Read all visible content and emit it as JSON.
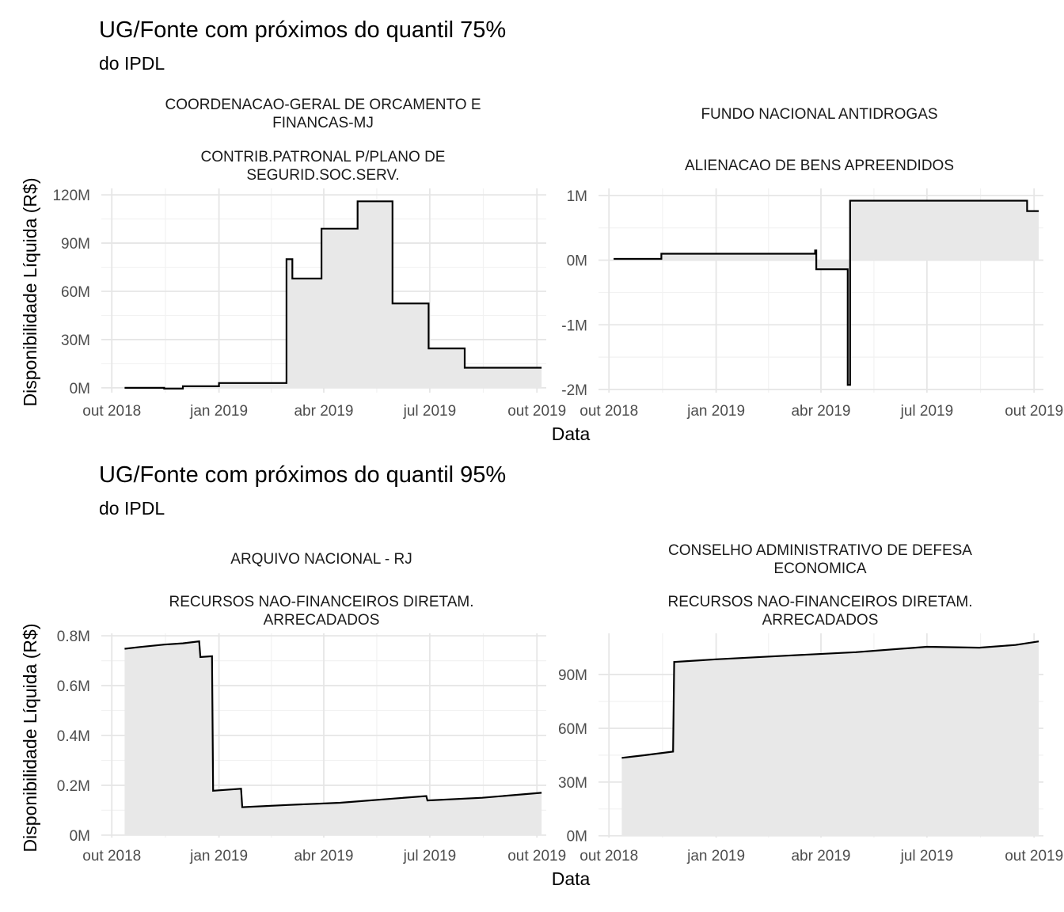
{
  "figures": [
    {
      "title": "UG/Fonte com próximos do quantil 75%",
      "subtitle": "do IPDL",
      "ylabel": "Disponibilidade Líquida (R$)",
      "xlabel": "Data"
    },
    {
      "title": "UG/Fonte com próximos do quantil 95%",
      "subtitle": "do IPDL",
      "ylabel": "Disponibilidade Líquida (R$)",
      "xlabel": "Data"
    }
  ],
  "x_ticks": [
    {
      "date": "2018-10-01",
      "label": "out 2018"
    },
    {
      "date": "2019-01-01",
      "label": "jan 2019"
    },
    {
      "date": "2019-04-01",
      "label": "abr 2019"
    },
    {
      "date": "2019-07-01",
      "label": "jul 2019"
    },
    {
      "date": "2019-10-01",
      "label": "out 2019"
    }
  ],
  "colors": {
    "line": "#000000",
    "fill": "#e8e8e8",
    "grid_major": "#e6e6e6",
    "grid_minor": "#f2f2f2",
    "tick_text": "#4d4d4d"
  },
  "chart_data": [
    {
      "type": "area",
      "figure": 0,
      "panel": "left",
      "strip": [
        "COORDENACAO-GERAL DE ORCAMENTO E",
        "FINANCAS-MJ",
        "CONTRIB.PATRONAL P/PLANO DE",
        "SEGURID.SOC.SERV."
      ],
      "xlim": [
        "2018-09-22",
        "2019-10-09"
      ],
      "ylim": [
        -3000000,
        124000000
      ],
      "y_ticks": [
        {
          "v": 0,
          "label": "0M"
        },
        {
          "v": 30000000,
          "label": "30M"
        },
        {
          "v": 60000000,
          "label": "60M"
        },
        {
          "v": 90000000,
          "label": "90M"
        },
        {
          "v": 120000000,
          "label": "120M"
        }
      ],
      "step": true,
      "x": [
        "2018-10-12",
        "2018-11-15",
        "2018-12-01",
        "2018-12-20",
        "2019-01-01",
        "2019-02-28",
        "2019-03-05",
        "2019-03-30",
        "2019-04-30",
        "2019-05-30",
        "2019-06-30",
        "2019-07-31",
        "2019-10-05"
      ],
      "y": [
        0,
        -500000,
        1000000,
        1000000,
        3000000,
        80000000,
        68000000,
        99000000,
        116000000,
        52500000,
        24500000,
        12500000,
        12500000
      ]
    },
    {
      "type": "area",
      "figure": 0,
      "panel": "right",
      "strip": [
        "FUNDO NACIONAL ANTIDROGAS",
        "",
        "ALIENACAO DE BENS APREENDIDOS",
        ""
      ],
      "xlim": [
        "2018-09-22",
        "2019-10-09"
      ],
      "ylim": [
        -2050000,
        1110000
      ],
      "y_ticks": [
        {
          "v": -2000000,
          "label": "-2M"
        },
        {
          "v": -1000000,
          "label": "-1M"
        },
        {
          "v": 0,
          "label": "0M"
        },
        {
          "v": 1000000,
          "label": "1M"
        }
      ],
      "step": true,
      "x": [
        "2018-10-05",
        "2018-11-15",
        "2019-03-27",
        "2019-03-28",
        "2019-04-24",
        "2019-04-26",
        "2019-09-25",
        "2019-10-05"
      ],
      "y": [
        20000,
        100000,
        150000,
        -140000,
        -1930000,
        920000,
        760000,
        760000
      ]
    },
    {
      "type": "area",
      "figure": 1,
      "panel": "left",
      "strip": [
        "ARQUIVO NACIONAL - RJ",
        "",
        "RECURSOS NAO-FINANCEIROS DIRETAM.",
        "ARRECADADOS"
      ],
      "xlim": [
        "2018-09-22",
        "2019-10-09"
      ],
      "ylim": [
        -10000,
        810000
      ],
      "y_ticks": [
        {
          "v": 0,
          "label": "0M"
        },
        {
          "v": 200000,
          "label": "0.2M"
        },
        {
          "v": 400000,
          "label": "0.4M"
        },
        {
          "v": 600000,
          "label": "0.6M"
        },
        {
          "v": 800000,
          "label": "0.8M"
        }
      ],
      "step": false,
      "x": [
        "2018-10-12",
        "2018-10-25",
        "2018-11-15",
        "2018-12-01",
        "2018-12-15",
        "2018-12-16",
        "2018-12-26",
        "2018-12-27",
        "2019-01-20",
        "2019-01-21",
        "2019-03-01",
        "2019-04-15",
        "2019-06-28",
        "2019-06-29",
        "2019-08-15",
        "2019-10-05"
      ],
      "y": [
        748000,
        755000,
        765000,
        770000,
        778000,
        715000,
        718000,
        178000,
        186000,
        112000,
        121000,
        130000,
        157000,
        139000,
        150000,
        170000
      ]
    },
    {
      "type": "area",
      "figure": 1,
      "panel": "right",
      "strip": [
        "CONSELHO ADMINISTRATIVO DE DEFESA",
        "ECONOMICA",
        "RECURSOS NAO-FINANCEIROS DIRETAM.",
        "ARRECADADOS"
      ],
      "xlim": [
        "2018-09-22",
        "2019-10-09"
      ],
      "ylim": [
        -1000000,
        113000000
      ],
      "y_ticks": [
        {
          "v": 0,
          "label": "0M"
        },
        {
          "v": 30000000,
          "label": "30M"
        },
        {
          "v": 60000000,
          "label": "60M"
        },
        {
          "v": 90000000,
          "label": "90M"
        }
      ],
      "step": false,
      "x": [
        "2018-10-12",
        "2018-11-01",
        "2018-11-25",
        "2018-11-26",
        "2019-01-01",
        "2019-03-01",
        "2019-05-01",
        "2019-07-01",
        "2019-08-15",
        "2019-09-15",
        "2019-10-05"
      ],
      "y": [
        43500000,
        45000000,
        47000000,
        97000000,
        98500000,
        100500000,
        102500000,
        105500000,
        105000000,
        106500000,
        108500000
      ]
    }
  ]
}
